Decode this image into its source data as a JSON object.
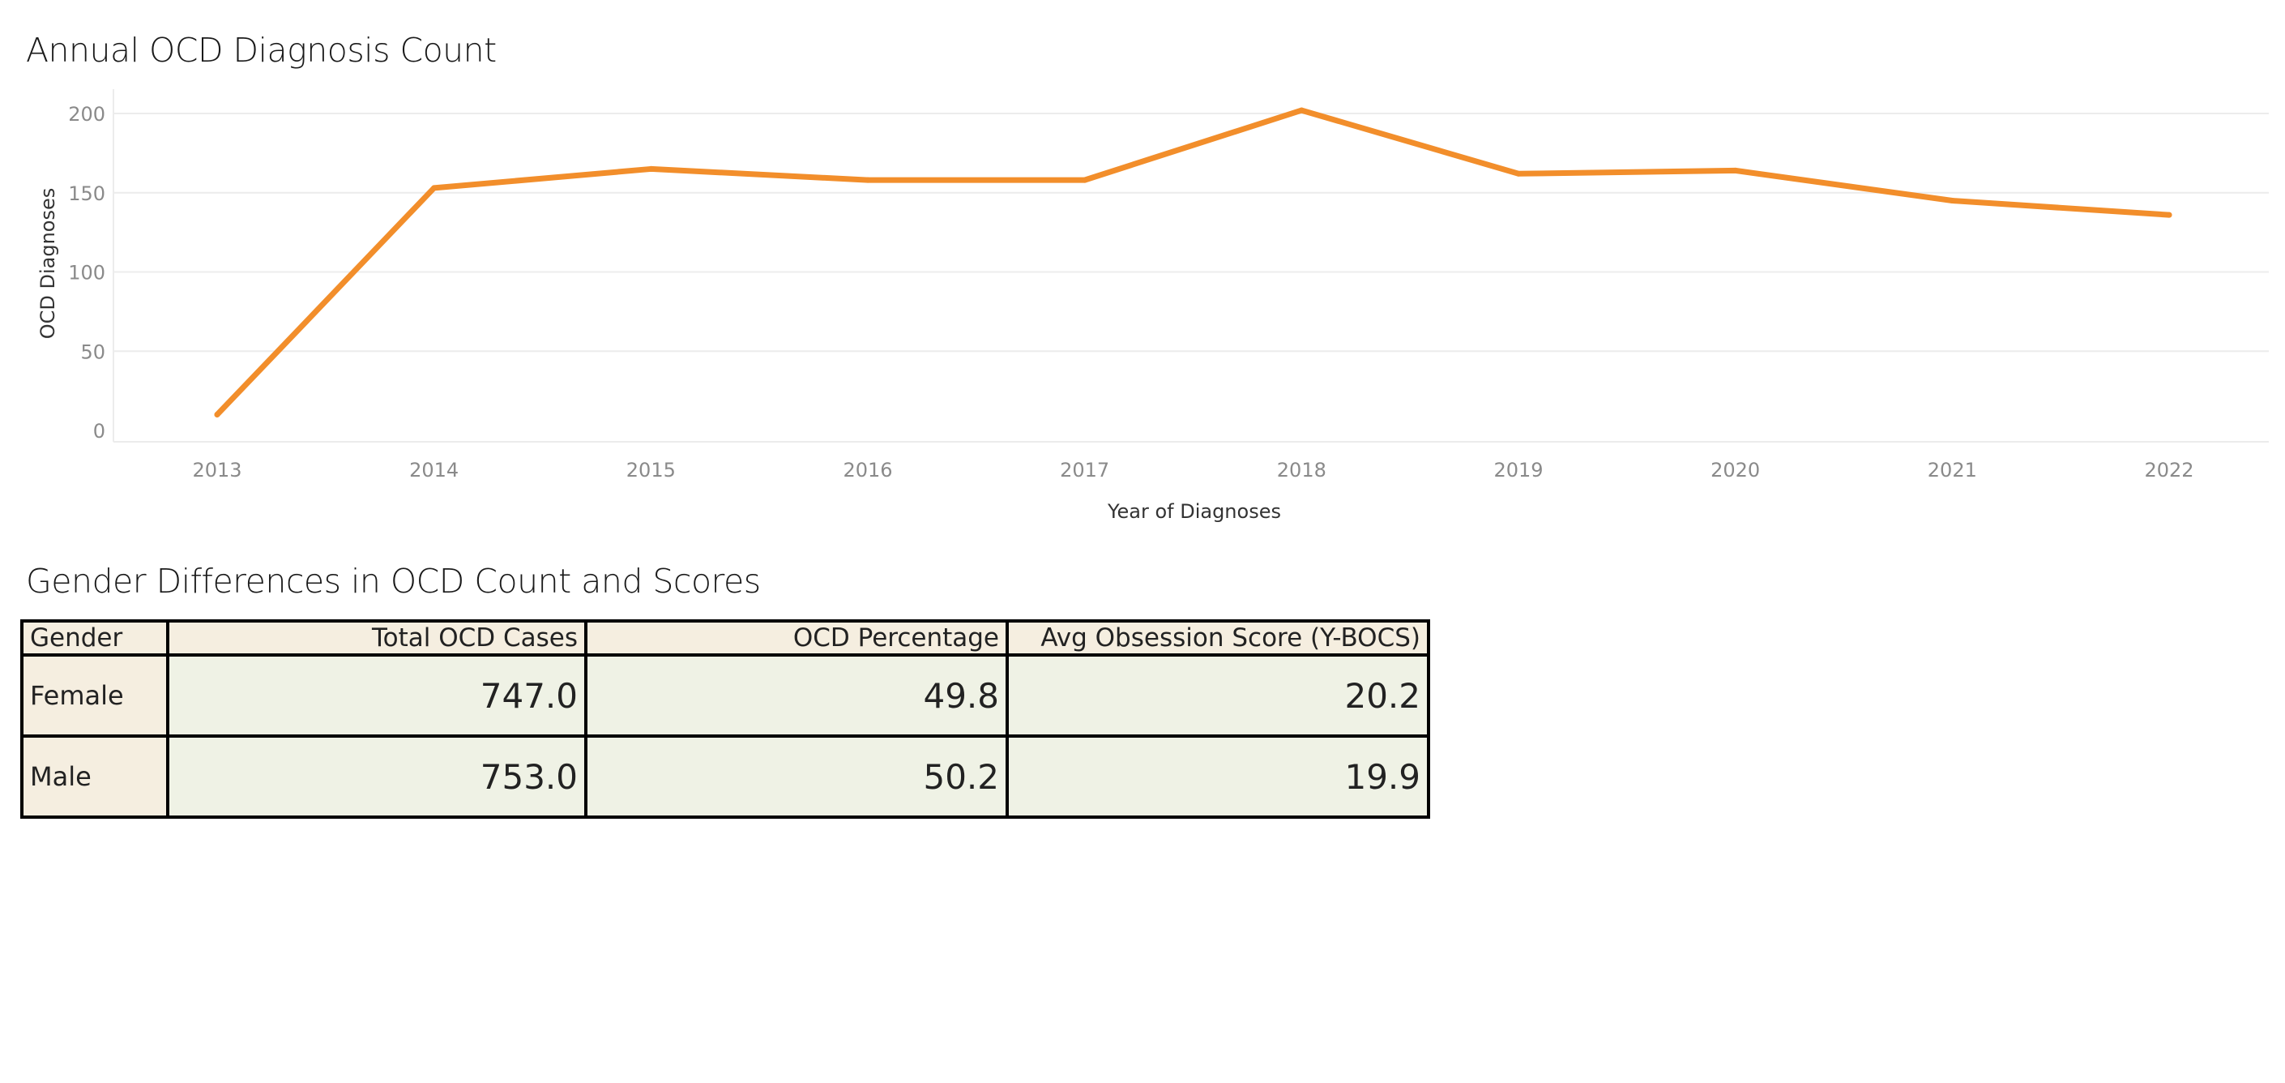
{
  "line_chart_title": "Annual OCD Diagnosis Count",
  "table_title": "Gender Differences in OCD Count and Scores",
  "colors": {
    "line": "#f28e2b",
    "header_bg": "#f5eee0",
    "cell_bg": "#eff2e5",
    "grid": "#ececec"
  },
  "chart_data": [
    {
      "type": "line",
      "title": "Annual OCD Diagnosis Count",
      "xlabel": "Year of Diagnoses",
      "ylabel": "OCD Diagnoses",
      "x": [
        2013,
        2014,
        2015,
        2016,
        2017,
        2018,
        2019,
        2020,
        2021,
        2022
      ],
      "x_ticks": [
        "2013",
        "2014",
        "2015",
        "2016",
        "2017",
        "2018",
        "2019",
        "2020",
        "2021",
        "2022"
      ],
      "y_ticks": [
        "0",
        "50",
        "100",
        "150",
        "200"
      ],
      "series": [
        {
          "values": [
            10,
            153,
            165,
            158,
            158,
            202,
            162,
            164,
            145,
            136
          ]
        }
      ],
      "ylim": [
        -8,
        200
      ],
      "grid": true
    },
    {
      "type": "table",
      "title": "Gender Differences in OCD Count and Scores",
      "columns": [
        "Gender",
        "Total OCD Cases",
        "OCD Percentage",
        "Avg Obsession Score (Y-BOCS)"
      ],
      "rows": [
        [
          "Female",
          "747.0",
          "49.8",
          "20.2"
        ],
        [
          "Male",
          "753.0",
          "50.2",
          "19.9"
        ]
      ]
    }
  ]
}
